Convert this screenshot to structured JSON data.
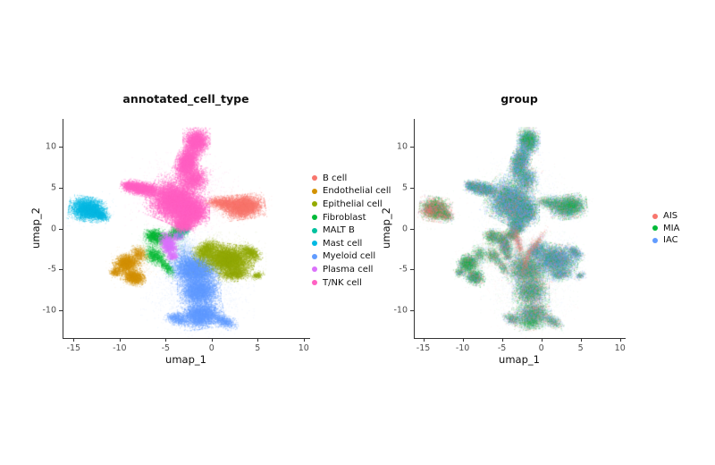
{
  "page": {
    "background": "#ffffff"
  },
  "chart_data": {
    "type": "scatter",
    "description": "Two UMAP embeddings of single cells; left colored by annotated cell type, right colored by sample group.",
    "axes": {
      "x_ticks": [
        -15,
        -10,
        -5,
        0,
        5,
        10
      ],
      "y_ticks": [
        -10,
        -5,
        0,
        5,
        10
      ],
      "xlim": [
        -16.2,
        10.6
      ],
      "ylim": [
        -13.4,
        13.4
      ],
      "grid": false
    },
    "panels": [
      {
        "id": "left",
        "title": "annotated_cell_type",
        "xlabel": "umap_1",
        "ylabel": "umap_2",
        "color_mode": "category",
        "legend_position": "right",
        "legend": [
          {
            "label": "B cell",
            "color": "#F8766D"
          },
          {
            "label": "Endothelial cell",
            "color": "#D39200"
          },
          {
            "label": "Epithelial cell",
            "color": "#93AA00"
          },
          {
            "label": "Fibroblast",
            "color": "#00BA38"
          },
          {
            "label": "MALT B",
            "color": "#00C19F"
          },
          {
            "label": "Mast cell",
            "color": "#00B9E3"
          },
          {
            "label": "Myeloid cell",
            "color": "#619CFF"
          },
          {
            "label": "Plasma cell",
            "color": "#DB72FB"
          },
          {
            "label": "T/NK cell",
            "color": "#FF61C3"
          }
        ]
      },
      {
        "id": "right",
        "title": "group",
        "xlabel": "umap_1",
        "ylabel": "umap_2",
        "color_mode": "mix",
        "legend_position": "right",
        "legend": [
          {
            "label": "AIS",
            "color": "#F8766D"
          },
          {
            "label": "MIA",
            "color": "#00BA38"
          },
          {
            "label": "IAC",
            "color": "#619CFF"
          }
        ]
      }
    ],
    "point_size": 1,
    "clusters": [
      {
        "name": "Myeloid cell",
        "color": "#619CFF",
        "mix": [
          0.27,
          0.38,
          0.35
        ],
        "blobs": [
          [
            -1.9,
            -5.0,
            2.4,
            1.8,
            -12,
            5800,
            0.5
          ],
          [
            -1.4,
            -7.6,
            2.0,
            1.7,
            0,
            4200,
            0.5
          ],
          [
            -1.2,
            -10.5,
            2.1,
            1.5,
            8,
            4200,
            0.5
          ],
          [
            -3.8,
            -11.0,
            1.2,
            0.7,
            -15,
            750,
            0.45
          ],
          [
            1.3,
            -11.3,
            1.4,
            0.7,
            -25,
            850,
            0.45
          ],
          [
            -1.6,
            -7.0,
            5.2,
            5.6,
            0,
            2200,
            0.1
          ],
          [
            -3.0,
            -2.9,
            1.5,
            2.3,
            15,
            900,
            0.18
          ],
          [
            0.9,
            -4.1,
            2.1,
            1.3,
            0,
            900,
            0.15
          ]
        ]
      },
      {
        "name": "Epithelial cell",
        "color": "#93AA00",
        "mix": [
          0.18,
          0.3,
          0.52
        ],
        "blobs": [
          [
            1.7,
            -3.7,
            2.5,
            1.6,
            -10,
            6500,
            0.55
          ],
          [
            -0.7,
            -2.6,
            1.4,
            0.9,
            35,
            1500,
            0.45
          ],
          [
            4.2,
            -2.9,
            1.2,
            0.7,
            -35,
            1000,
            0.45
          ],
          [
            2.4,
            -5.5,
            1.5,
            0.8,
            5,
            1200,
            0.5
          ],
          [
            1.5,
            -3.6,
            3.7,
            2.7,
            0,
            1300,
            0.12
          ],
          [
            4.9,
            -5.7,
            0.7,
            0.45,
            20,
            250,
            0.45
          ]
        ]
      },
      {
        "name": "Fibroblast",
        "color": "#00BA38",
        "mix": [
          0.3,
          0.45,
          0.25
        ],
        "blobs": [
          [
            -6.3,
            -0.9,
            1.0,
            0.8,
            0,
            1100,
            0.5
          ],
          [
            -4.8,
            -1.0,
            2.1,
            0.55,
            28,
            1000,
            0.4
          ],
          [
            -6.2,
            -3.3,
            1.2,
            0.9,
            -35,
            900,
            0.45
          ],
          [
            -5.0,
            -4.6,
            1.4,
            0.55,
            -55,
            550,
            0.4
          ],
          [
            -5.4,
            -2.3,
            2.8,
            2.4,
            0,
            800,
            0.12
          ],
          [
            -3.7,
            -0.3,
            0.9,
            0.9,
            0,
            500,
            0.35
          ]
        ]
      },
      {
        "name": "Endothelial cell",
        "color": "#D39200",
        "mix": [
          0.25,
          0.5,
          0.25
        ],
        "blobs": [
          [
            -9.3,
            -4.2,
            1.2,
            1.0,
            20,
            2200,
            0.55
          ],
          [
            -8.5,
            -5.9,
            1.15,
            0.85,
            -15,
            1700,
            0.55
          ],
          [
            -7.9,
            -3.1,
            0.8,
            1.0,
            15,
            650,
            0.4
          ],
          [
            -10.4,
            -5.3,
            0.7,
            0.55,
            0,
            350,
            0.5
          ],
          [
            -8.8,
            -4.7,
            2.3,
            2.1,
            0,
            550,
            0.12
          ]
        ]
      },
      {
        "name": "Mast cell",
        "color": "#00B9E3",
        "mix": [
          0.5,
          0.38,
          0.12
        ],
        "blobs": [
          [
            -13.5,
            2.4,
            1.75,
            1.3,
            -8,
            4200,
            0.55
          ],
          [
            -12.2,
            1.7,
            1.0,
            0.6,
            -25,
            800,
            0.5
          ],
          [
            -13.4,
            2.3,
            2.5,
            2.0,
            0,
            350,
            0.12
          ]
        ]
      },
      {
        "name": "B cell",
        "color": "#F8766D",
        "mix": [
          0.22,
          0.45,
          0.33
        ],
        "blobs": [
          [
            3.4,
            2.7,
            2.0,
            1.3,
            8,
            4500,
            0.55
          ],
          [
            1.5,
            3.1,
            1.5,
            0.85,
            -5,
            1300,
            0.45
          ],
          [
            0.3,
            3.3,
            1.1,
            0.6,
            0,
            450,
            0.3
          ],
          [
            2.8,
            2.8,
            3.1,
            1.9,
            0,
            450,
            0.12
          ]
        ]
      },
      {
        "name": "Plasma cell",
        "color": "#DB72FB",
        "mix": [
          0.35,
          0.35,
          0.3
        ],
        "blobs": [
          [
            -4.7,
            -2.0,
            0.8,
            1.4,
            20,
            1800,
            0.55
          ],
          [
            -3.7,
            -0.9,
            0.6,
            0.55,
            0,
            420,
            0.45
          ],
          [
            -4.3,
            -3.4,
            0.55,
            0.45,
            0,
            260,
            0.45
          ]
        ]
      },
      {
        "name": "MALT B",
        "color": "#00C19F",
        "mix": [
          0.3,
          0.4,
          0.3
        ],
        "blobs": [
          [
            -3.0,
            0.1,
            0.6,
            0.65,
            0,
            650,
            0.5
          ],
          [
            -3.5,
            -0.7,
            0.9,
            0.8,
            0,
            220,
            0.2
          ]
        ]
      },
      {
        "name": "T/NK cell",
        "color": "#FF61C3",
        "mix": [
          0.18,
          0.32,
          0.5
        ],
        "blobs": [
          [
            -3.9,
            3.3,
            2.7,
            2.3,
            -25,
            11000,
            0.55
          ],
          [
            -2.3,
            2.1,
            1.7,
            1.5,
            0,
            5000,
            0.55
          ],
          [
            -2.7,
            8.2,
            1.1,
            2.1,
            -19,
            4000,
            0.55
          ],
          [
            -1.7,
            10.7,
            1.25,
            1.4,
            0,
            3000,
            0.55
          ],
          [
            -2.0,
            6.1,
            1.4,
            1.5,
            -19,
            2200,
            0.5
          ],
          [
            -7.5,
            4.9,
            1.9,
            0.8,
            -12,
            2800,
            0.55
          ],
          [
            -8.9,
            5.2,
            0.9,
            0.6,
            -15,
            800,
            0.55
          ],
          [
            -3.1,
            0.6,
            1.1,
            1.0,
            0,
            1800,
            0.5
          ],
          [
            -3.3,
            4.0,
            5.2,
            4.5,
            0,
            1500,
            0.12
          ]
        ]
      }
    ],
    "right_extra": [
      {
        "name": "ais-streaks",
        "mix": [
          0.78,
          0.1,
          0.12
        ],
        "blobs": [
          [
            -3.0,
            -1.6,
            0.5,
            2.3,
            15,
            800,
            0.32
          ],
          [
            -1.9,
            -3.7,
            0.5,
            2.6,
            -18,
            650,
            0.32
          ],
          [
            -0.6,
            -1.7,
            0.45,
            2.0,
            -35,
            450,
            0.32
          ],
          [
            -14.3,
            2.3,
            0.8,
            0.6,
            -15,
            450,
            0.4
          ]
        ]
      },
      {
        "name": "mia-patches",
        "mix": [
          0.1,
          0.75,
          0.15
        ],
        "blobs": [
          [
            -1.7,
            11.0,
            1.1,
            1.2,
            0,
            900,
            0.35
          ],
          [
            -1.4,
            -11.6,
            1.6,
            0.8,
            0,
            650,
            0.32
          ],
          [
            -9.4,
            -4.4,
            0.9,
            0.7,
            0,
            450,
            0.35
          ],
          [
            3.9,
            2.9,
            1.2,
            0.9,
            0,
            550,
            0.32
          ]
        ]
      }
    ]
  }
}
